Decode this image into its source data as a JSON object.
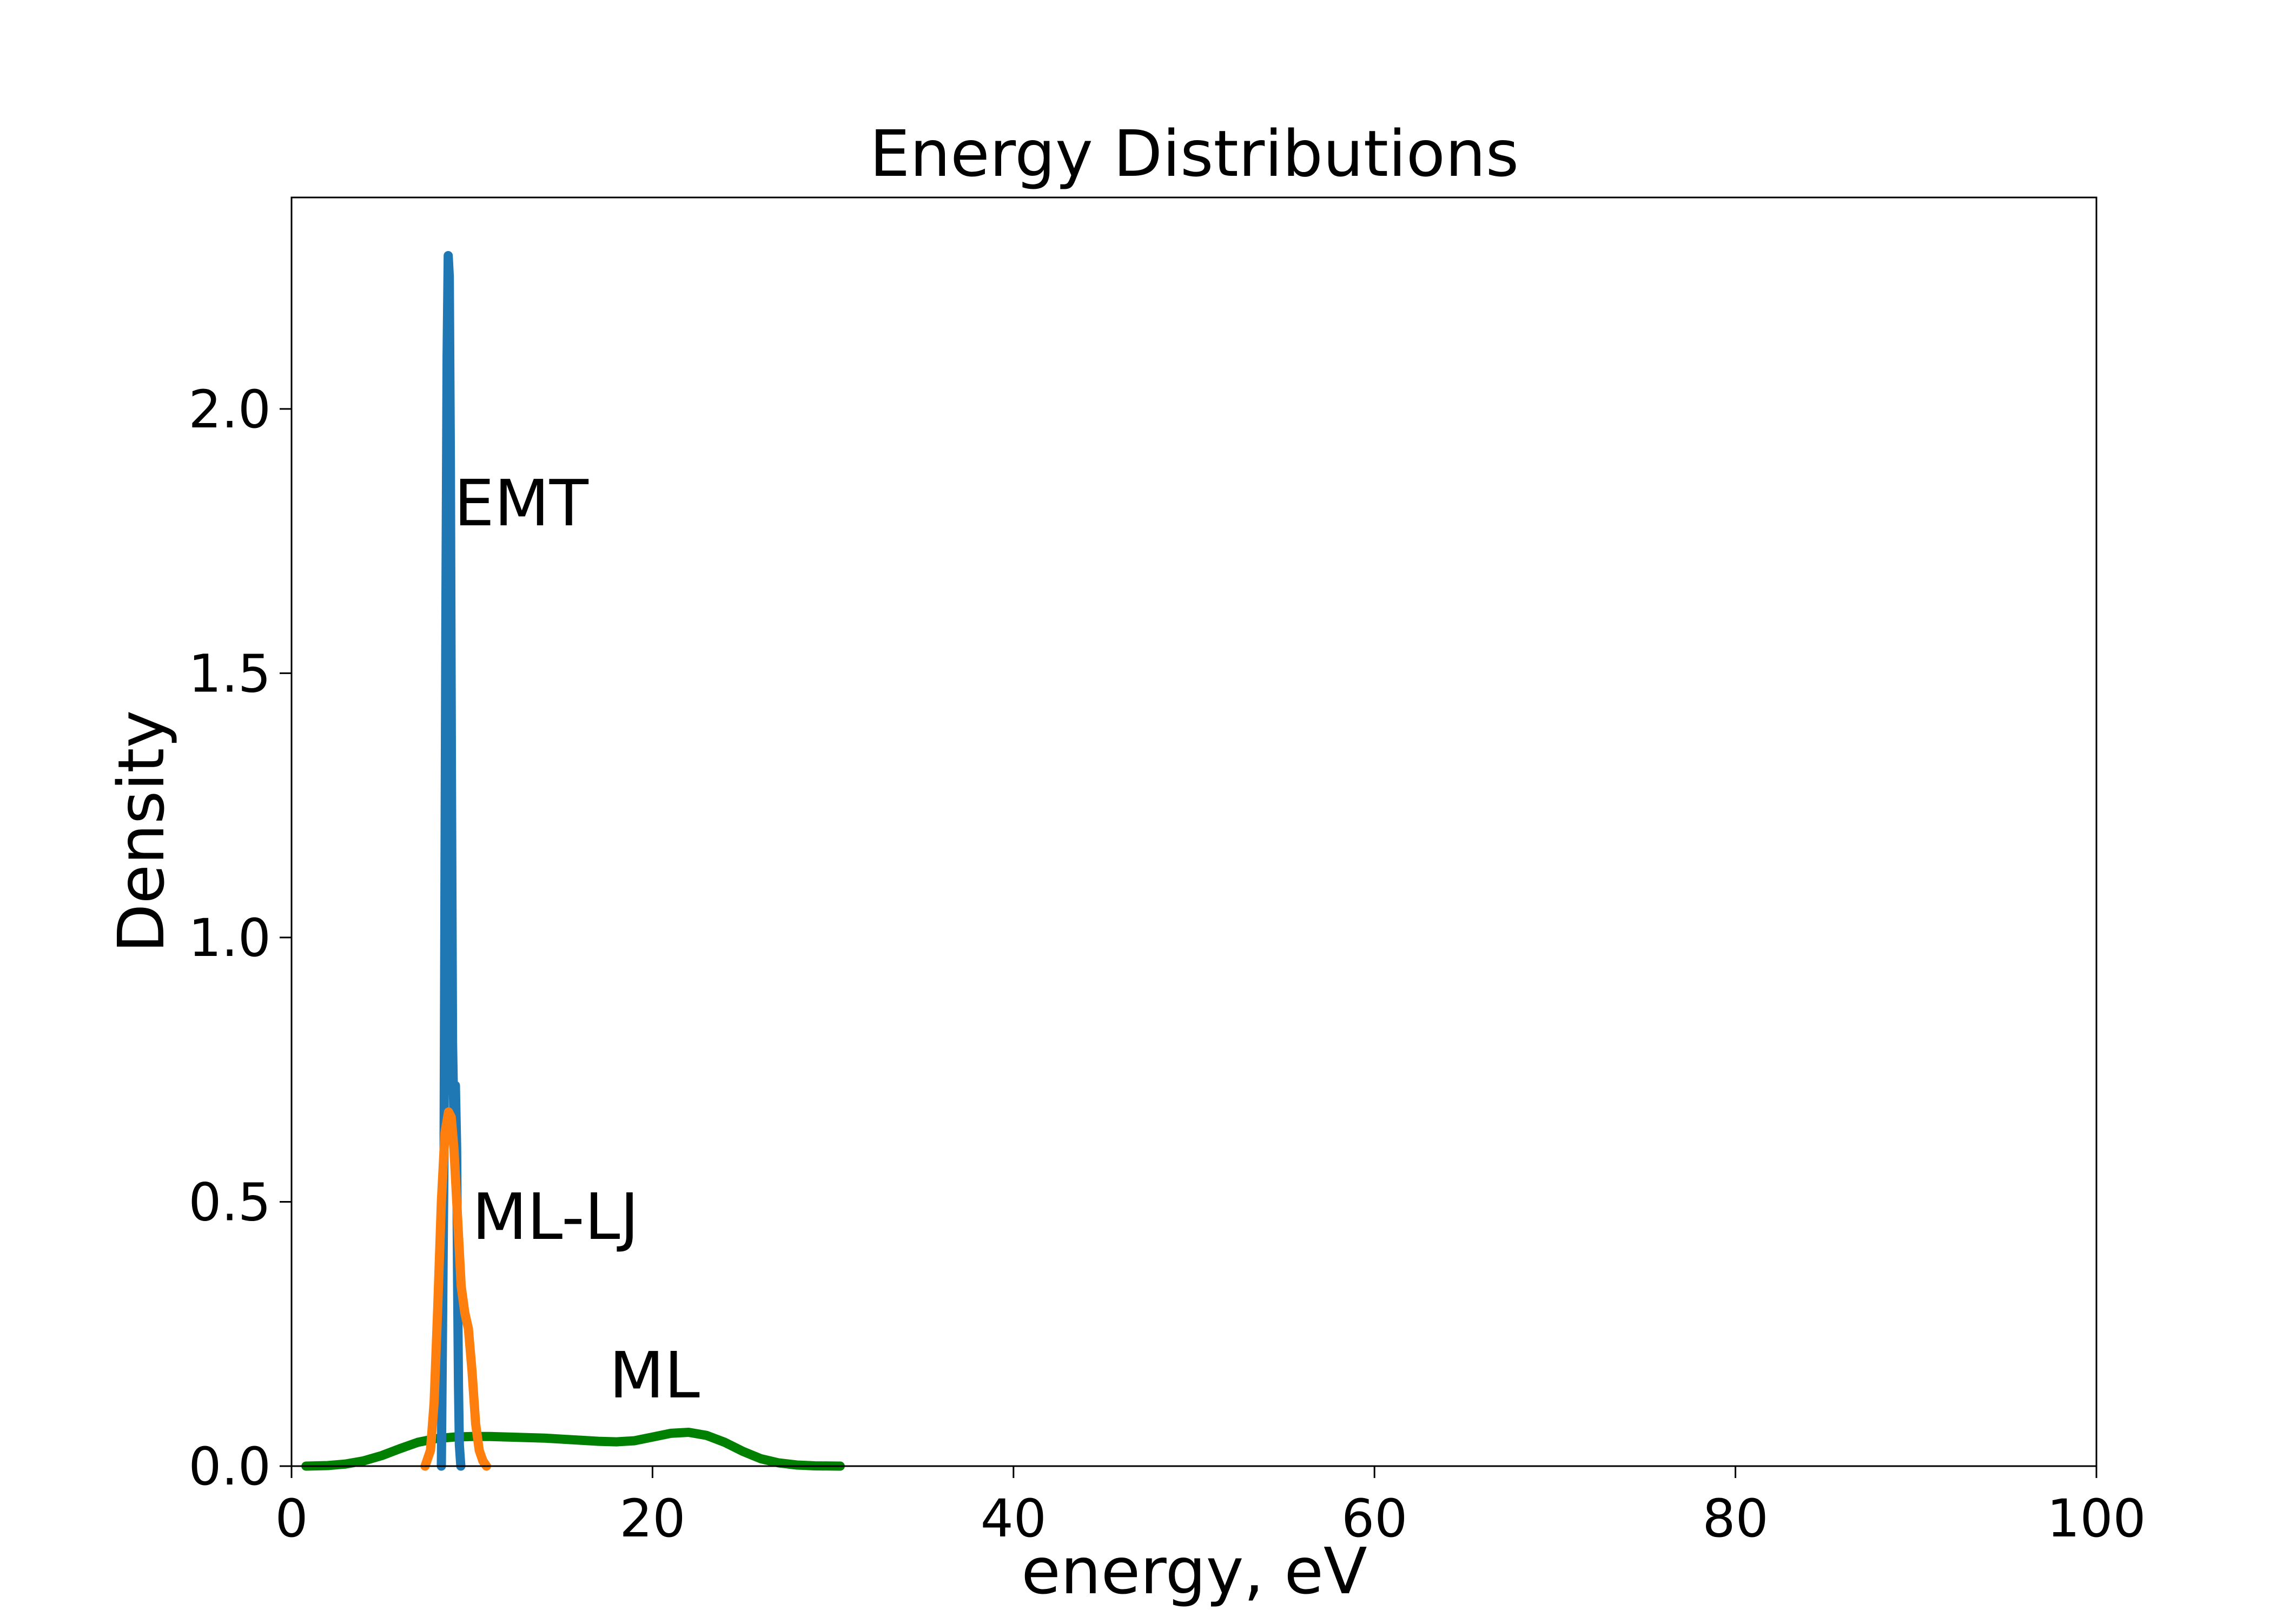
{
  "chart_data": {
    "type": "line",
    "title": "Energy Distributions",
    "xlabel": "energy, eV",
    "ylabel": "Density",
    "xlim": [
      0,
      100
    ],
    "ylim": [
      0,
      2.4
    ],
    "xticks": [
      0,
      20,
      40,
      60,
      80,
      100
    ],
    "xtick_labels": [
      "0",
      "20",
      "40",
      "60",
      "80",
      "100"
    ],
    "yticks": [
      0.0,
      0.5,
      1.0,
      1.5,
      2.0
    ],
    "ytick_labels": [
      "0.0",
      "0.5",
      "1.0",
      "1.5",
      "2.0"
    ],
    "grid": false,
    "legend": "none",
    "series": [
      {
        "name": "EMT",
        "color": "#1f77b4",
        "x": [
          8.3,
          8.45,
          8.55,
          8.62,
          8.68,
          8.74,
          8.8,
          8.86,
          8.92,
          9.0,
          9.08,
          9.15,
          9.2,
          9.25,
          9.3,
          9.38
        ],
        "y": [
          0.0,
          0.6,
          1.6,
          2.1,
          2.29,
          2.25,
          1.9,
          1.3,
          0.8,
          0.65,
          0.72,
          0.6,
          0.35,
          0.15,
          0.04,
          0.0
        ]
      },
      {
        "name": "ML-LJ",
        "color": "#ff7f0e",
        "x": [
          7.4,
          7.7,
          7.9,
          8.1,
          8.3,
          8.5,
          8.7,
          8.85,
          9.0,
          9.2,
          9.4,
          9.6,
          9.8,
          10.0,
          10.2,
          10.4,
          10.6,
          10.8
        ],
        "y": [
          0.0,
          0.03,
          0.12,
          0.3,
          0.5,
          0.63,
          0.67,
          0.66,
          0.6,
          0.47,
          0.34,
          0.29,
          0.26,
          0.18,
          0.08,
          0.03,
          0.01,
          0.0
        ]
      },
      {
        "name": "ML",
        "color": "#008000",
        "x": [
          0.8,
          2,
          3,
          4,
          5,
          6,
          7,
          8,
          9,
          10,
          11,
          12,
          13,
          14,
          15,
          16,
          17,
          18,
          19,
          20,
          21,
          22,
          23,
          24,
          25,
          26,
          27,
          28,
          29,
          30.4
        ],
        "y": [
          0.0,
          0.001,
          0.004,
          0.01,
          0.02,
          0.033,
          0.045,
          0.052,
          0.055,
          0.056,
          0.056,
          0.055,
          0.054,
          0.053,
          0.051,
          0.049,
          0.047,
          0.046,
          0.048,
          0.055,
          0.062,
          0.064,
          0.058,
          0.045,
          0.028,
          0.014,
          0.006,
          0.002,
          0.0005,
          0.0
        ]
      }
    ],
    "annotations": [
      {
        "text": "EMT",
        "x": 9.0,
        "y": 1.78,
        "color": "#4682b4"
      },
      {
        "text": "ML-LJ",
        "x": 10.0,
        "y": 0.43,
        "color": "#ff7f0e"
      },
      {
        "text": "ML",
        "x": 17.6,
        "y": 0.13,
        "color": "#008000"
      }
    ]
  }
}
